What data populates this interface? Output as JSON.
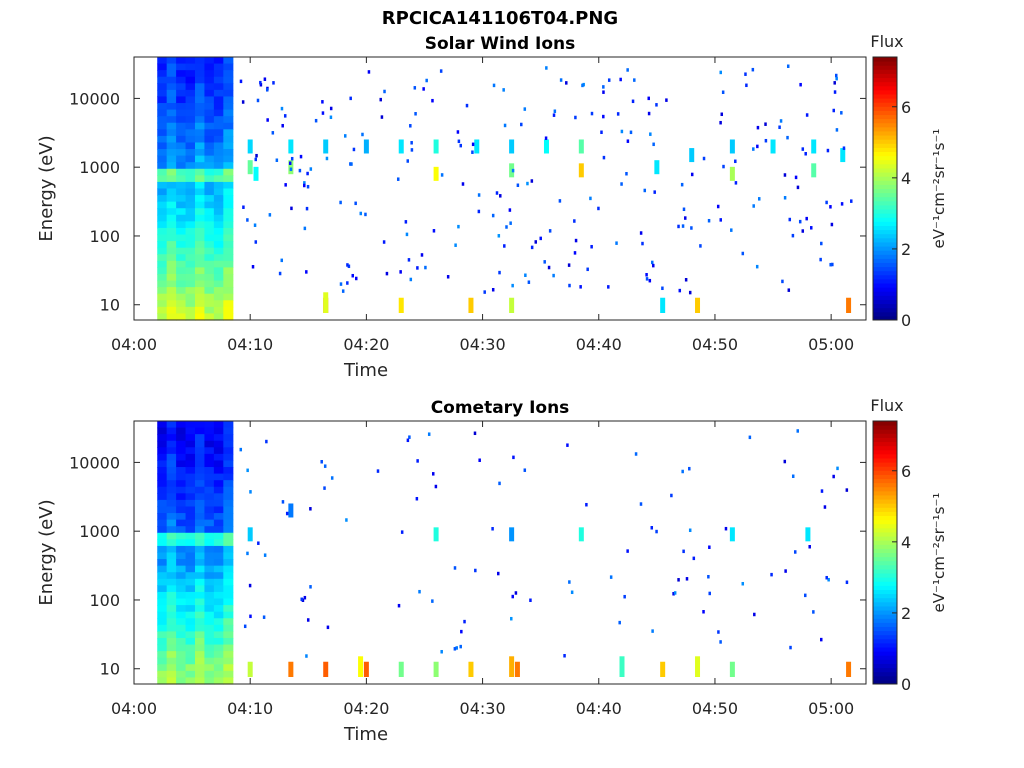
{
  "figure": {
    "title": "RPCICA141106T04.PNG"
  },
  "chart_data": [
    {
      "type": "heatmap",
      "title": "Solar Wind Ions",
      "xlabel": "Time",
      "ylabel": "Energy (eV)",
      "x_ticks": [
        "04:00",
        "04:10",
        "04:20",
        "04:30",
        "04:40",
        "04:50",
        "05:00"
      ],
      "x_range": [
        "04:00",
        "05:03"
      ],
      "y_scale": "log",
      "y_ticks": [
        10,
        100,
        1000,
        10000
      ],
      "y_tick_labels": [
        "10",
        "100",
        "1000",
        "10000"
      ],
      "y_range": [
        6,
        40000
      ],
      "colorbar": {
        "title": "Flux",
        "label": "eV⁻¹cm⁻²sr⁻¹s⁻¹",
        "range": [
          0,
          7.4
        ],
        "ticks": [
          0,
          2,
          4,
          6
        ],
        "colormap": "jet"
      },
      "background_block": {
        "x_start": "04:02",
        "x_end": "04:08:30"
      },
      "cells": [
        [
          "04:10:00",
          1000,
          3.5
        ],
        [
          "04:10:00",
          2000,
          2.5
        ],
        [
          "04:10:30",
          800,
          2.8
        ],
        [
          "04:13:30",
          1000,
          3.8
        ],
        [
          "04:13:30",
          2000,
          2.6
        ],
        [
          "04:16:30",
          2000,
          2.4
        ],
        [
          "04:20:00",
          2000,
          2.2
        ],
        [
          "04:23:00",
          2000,
          2.6
        ],
        [
          "04:26:00",
          800,
          4.6
        ],
        [
          "04:26:00",
          2000,
          3.0
        ],
        [
          "04:29:30",
          2000,
          2.6
        ],
        [
          "04:32:30",
          900,
          3.6
        ],
        [
          "04:32:30",
          2000,
          2.4
        ],
        [
          "04:35:30",
          2000,
          2.8
        ],
        [
          "04:38:30",
          900,
          5.0
        ],
        [
          "04:38:30",
          2000,
          3.4
        ],
        [
          "04:45:00",
          1000,
          2.6
        ],
        [
          "04:48:00",
          1500,
          2.4
        ],
        [
          "04:51:30",
          800,
          4.0
        ],
        [
          "04:51:30",
          2000,
          2.4
        ],
        [
          "04:55:00",
          2000,
          2.6
        ],
        [
          "04:58:30",
          900,
          3.4
        ],
        [
          "04:58:30",
          2000,
          2.6
        ],
        [
          "05:01:00",
          1500,
          2.6
        ],
        [
          "04:16:30",
          10,
          5.6
        ],
        [
          "04:16:30",
          12,
          4.4
        ],
        [
          "04:23:00",
          10,
          4.8
        ],
        [
          "04:29:00",
          10,
          5.0
        ],
        [
          "04:32:30",
          10,
          4.2
        ],
        [
          "04:48:30",
          10,
          5.0
        ],
        [
          "05:01:30",
          10,
          5.6
        ],
        [
          "04:45:30",
          10,
          2.6
        ]
      ]
    },
    {
      "type": "heatmap",
      "title": "Cometary Ions",
      "xlabel": "Time",
      "ylabel": "Energy (eV)",
      "x_ticks": [
        "04:00",
        "04:10",
        "04:20",
        "04:30",
        "04:40",
        "04:50",
        "05:00"
      ],
      "x_range": [
        "04:00",
        "05:03"
      ],
      "y_scale": "log",
      "y_ticks": [
        10,
        100,
        1000,
        10000
      ],
      "y_tick_labels": [
        "10",
        "100",
        "1000",
        "10000"
      ],
      "y_range": [
        6,
        40000
      ],
      "colorbar": {
        "title": "Flux",
        "label": "eV⁻¹cm⁻²sr⁻¹s⁻¹",
        "range": [
          0,
          7.4
        ],
        "ticks": [
          0,
          2,
          4,
          6
        ],
        "colormap": "jet"
      },
      "background_block": {
        "x_start": "04:02",
        "x_end": "04:08:30"
      },
      "cells": [
        [
          "04:10:00",
          900,
          2.4
        ],
        [
          "04:13:30",
          2000,
          1.8
        ],
        [
          "04:26:00",
          900,
          3.0
        ],
        [
          "04:32:30",
          900,
          2.0
        ],
        [
          "04:38:30",
          900,
          3.0
        ],
        [
          "04:51:30",
          900,
          2.6
        ],
        [
          "04:58:00",
          900,
          2.6
        ],
        [
          "04:10:00",
          10,
          4.2
        ],
        [
          "04:13:30",
          10,
          5.6
        ],
        [
          "04:16:30",
          10,
          5.8
        ],
        [
          "04:19:30",
          12,
          4.6
        ],
        [
          "04:20:00",
          10,
          5.8
        ],
        [
          "04:23:00",
          10,
          3.6
        ],
        [
          "04:26:00",
          10,
          3.8
        ],
        [
          "04:29:00",
          10,
          5.0
        ],
        [
          "04:32:30",
          12,
          5.2
        ],
        [
          "04:33:00",
          10,
          5.6
        ],
        [
          "04:45:30",
          10,
          5.0
        ],
        [
          "04:48:30",
          12,
          4.4
        ],
        [
          "04:51:30",
          10,
          3.6
        ],
        [
          "05:01:30",
          10,
          5.6
        ],
        [
          "04:42:00",
          12,
          3.2
        ]
      ]
    }
  ]
}
